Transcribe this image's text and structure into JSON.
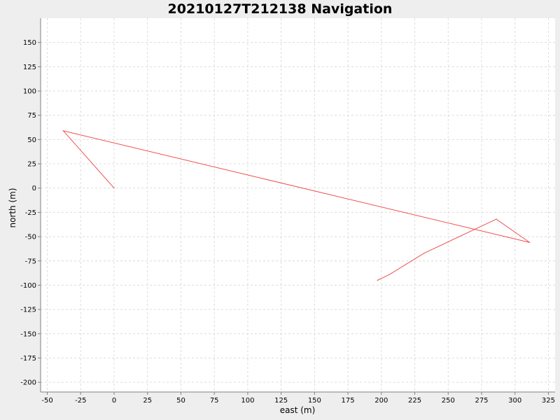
{
  "chart_data": {
    "type": "line",
    "title": "20210127T212138 Navigation",
    "xlabel": "east (m)",
    "ylabel": "north (m)",
    "xlim": [
      -55,
      330
    ],
    "ylim": [
      -210,
      175
    ],
    "xticks": [
      "-50",
      "-25",
      "0",
      "25",
      "50",
      "75",
      "100",
      "125",
      "150",
      "175",
      "200",
      "225",
      "250",
      "275",
      "300",
      "325"
    ],
    "yticks": [
      "150",
      "125",
      "100",
      "75",
      "50",
      "25",
      "0",
      "-25",
      "-50",
      "-75",
      "-100",
      "-125",
      "-150",
      "-175",
      "-200"
    ],
    "grid": true,
    "legend": "none",
    "series": [
      {
        "color": "#f05050",
        "x": [
          0,
          -38,
          311,
          286,
          232,
          206,
          197
        ],
        "y": [
          0,
          59,
          -56,
          -32,
          -67,
          -89,
          -95
        ]
      }
    ]
  }
}
